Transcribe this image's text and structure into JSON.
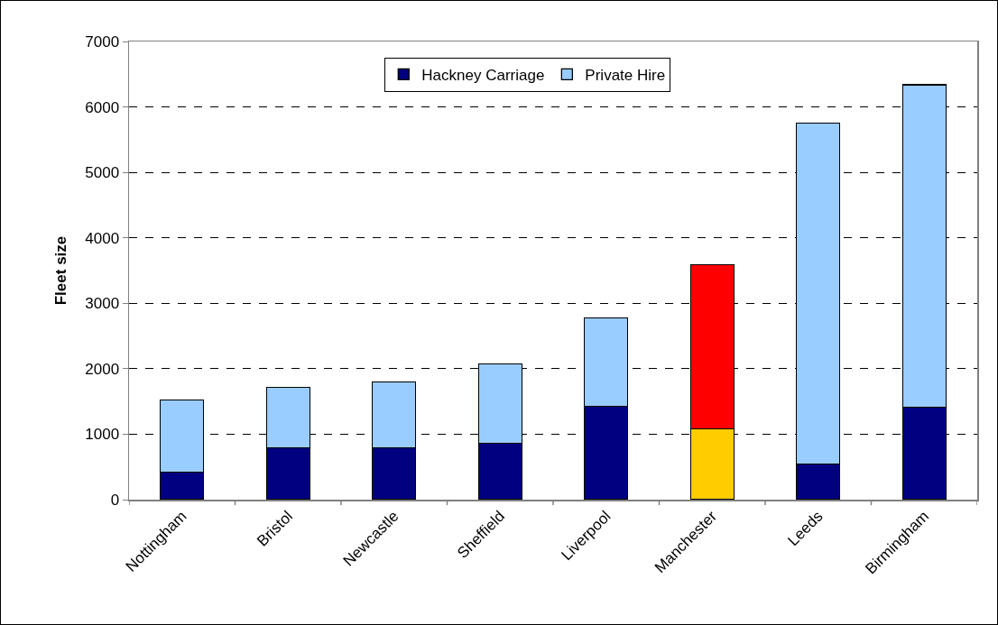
{
  "chart_data": {
    "type": "bar",
    "stacked": true,
    "ylabel": "Fleet size",
    "categories": [
      "Nottingham",
      "Bristol",
      "Newcastle",
      "Sheffield",
      "Liverpool",
      "Manchester",
      "Leeds",
      "Birmingham"
    ],
    "series": [
      {
        "name": "Hackney Carriage",
        "colors": [
          "#000080",
          "#000080",
          "#000080",
          "#000080",
          "#000080",
          "#ffcc00",
          "#000080",
          "#000080"
        ],
        "values": [
          420,
          790,
          790,
          860,
          1430,
          1080,
          540,
          1410
        ]
      },
      {
        "name": "Private Hire",
        "colors": [
          "#99ccff",
          "#99ccff",
          "#99ccff",
          "#99ccff",
          "#99ccff",
          "#ff0000",
          "#99ccff",
          "#99ccff"
        ],
        "values": [
          1100,
          930,
          1010,
          1210,
          1350,
          2510,
          5210,
          4930
        ]
      }
    ],
    "ylim": [
      0,
      7000
    ],
    "yticks": [
      0,
      1000,
      2000,
      3000,
      4000,
      5000,
      6000,
      7000
    ],
    "grid": "y",
    "legend": "top"
  }
}
